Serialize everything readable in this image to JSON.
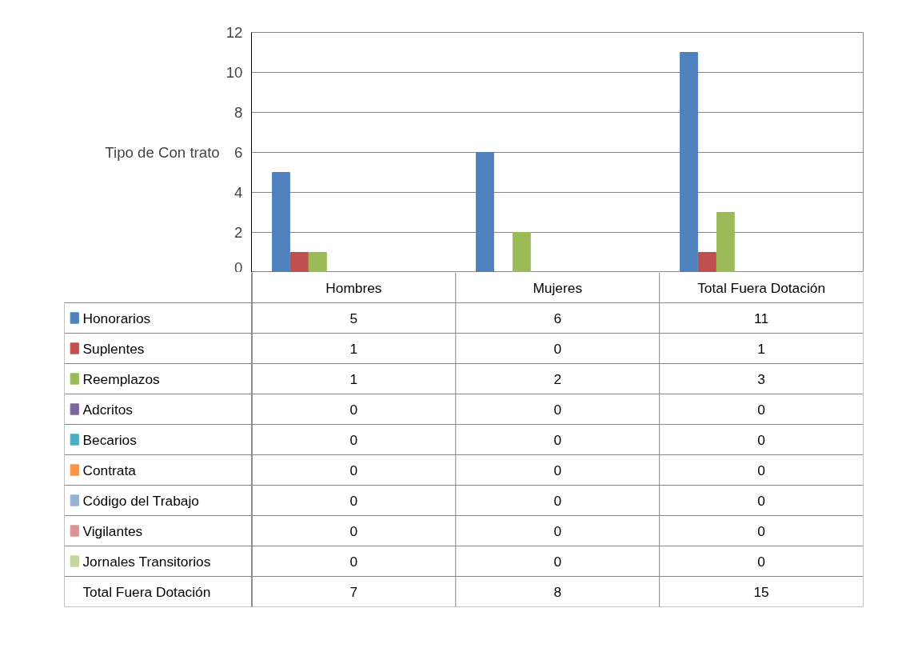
{
  "chart_data": {
    "type": "bar",
    "ylabel": "Tipo de Con trato",
    "categories": [
      "Hombres",
      "Mujeres",
      "Total Fuera Dotación"
    ],
    "series": [
      {
        "name": "Honorarios",
        "color": "#4f81bd",
        "values": [
          5,
          6,
          11
        ]
      },
      {
        "name": "Suplentes",
        "color": "#c0504d",
        "values": [
          1,
          0,
          1
        ]
      },
      {
        "name": "Reemplazos",
        "color": "#9bbb59",
        "values": [
          1,
          2,
          3
        ]
      },
      {
        "name": "Adcritos",
        "color": "#8064a2",
        "values": [
          0,
          0,
          0
        ]
      },
      {
        "name": "Becarios",
        "color": "#4bacc6",
        "values": [
          0,
          0,
          0
        ]
      },
      {
        "name": "Contrata",
        "color": "#f79646",
        "values": [
          0,
          0,
          0
        ]
      },
      {
        "name": "Código del Trabajo",
        "color": "#95b3d7",
        "values": [
          0,
          0,
          0
        ]
      },
      {
        "name": "Vigilantes",
        "color": "#d99694",
        "values": [
          0,
          0,
          0
        ]
      },
      {
        "name": "Jornales Transitorios",
        "color": "#c3d69b",
        "values": [
          0,
          0,
          0
        ]
      }
    ],
    "annotations": [
      "Total Fuera Dotación",
      "7",
      "8",
      "15"
    ],
    "ylim": [
      0,
      12
    ],
    "yticks": [
      0,
      2,
      4,
      6,
      8,
      10,
      12
    ],
    "grid": "y",
    "legend": "bottom",
    "data_labels": true
  }
}
